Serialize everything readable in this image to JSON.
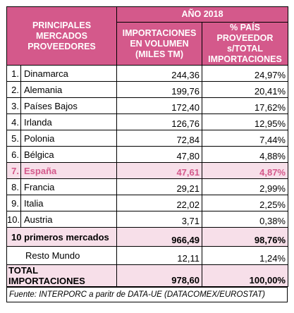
{
  "header": {
    "markets_line1": "PRINCIPALES",
    "markets_line2": "MERCADOS",
    "markets_line3": "PROVEEDORES",
    "year": "AÑO 2018",
    "volume_line1": "IMPORTACIONES",
    "volume_line2": "EN VOLUMEN",
    "volume_line3": "(MILES TM)",
    "share_line1": "% PAÍS PROVEEDOR",
    "share_line2": "s/TOTAL",
    "share_line3": "IMPORTACIONES"
  },
  "rows": [
    {
      "rank": "1.",
      "country": "Dinamarca",
      "volume": "244,36",
      "share": "24,97%"
    },
    {
      "rank": "2.",
      "country": "Alemania",
      "volume": "199,76",
      "share": "20,41%"
    },
    {
      "rank": "3.",
      "country": "Países Bajos",
      "volume": "172,40",
      "share": "17,62%"
    },
    {
      "rank": "4.",
      "country": "Irlanda",
      "volume": "126,76",
      "share": "12,95%"
    },
    {
      "rank": "5.",
      "country": "Polonia",
      "volume": "72,84",
      "share": "7,44%"
    },
    {
      "rank": "6.",
      "country": "Bélgica",
      "volume": "47,80",
      "share": "4,88%"
    },
    {
      "rank": "7.",
      "country": "España",
      "volume": "47,61",
      "share": "4,87%"
    },
    {
      "rank": "8.",
      "country": "Francia",
      "volume": "29,21",
      "share": "2,99%"
    },
    {
      "rank": "9.",
      "country": "Italia",
      "volume": "22,02",
      "share": "2,25%"
    },
    {
      "rank": "10.",
      "country": "Austria",
      "volume": "3,71",
      "share": "0,38%"
    }
  ],
  "summary": {
    "top10_label": "10 primeros mercados",
    "top10_volume": "966,49",
    "top10_share": "98,76%",
    "rest_label": "Resto Mundo",
    "rest_volume": "12,11",
    "rest_share": "1,24%",
    "total_label": "TOTAL IMPORTACIONES",
    "total_volume": "978,60",
    "total_share": "100,00%"
  },
  "footer": "Fuente: INTERPORC a paritr de DATA-UE (DATACOMEX/EUROSTAT)",
  "colors": {
    "header_bg": "#d4598b",
    "highlight_bg": "#f7dfe9",
    "highlight_text": "#d4598b"
  }
}
